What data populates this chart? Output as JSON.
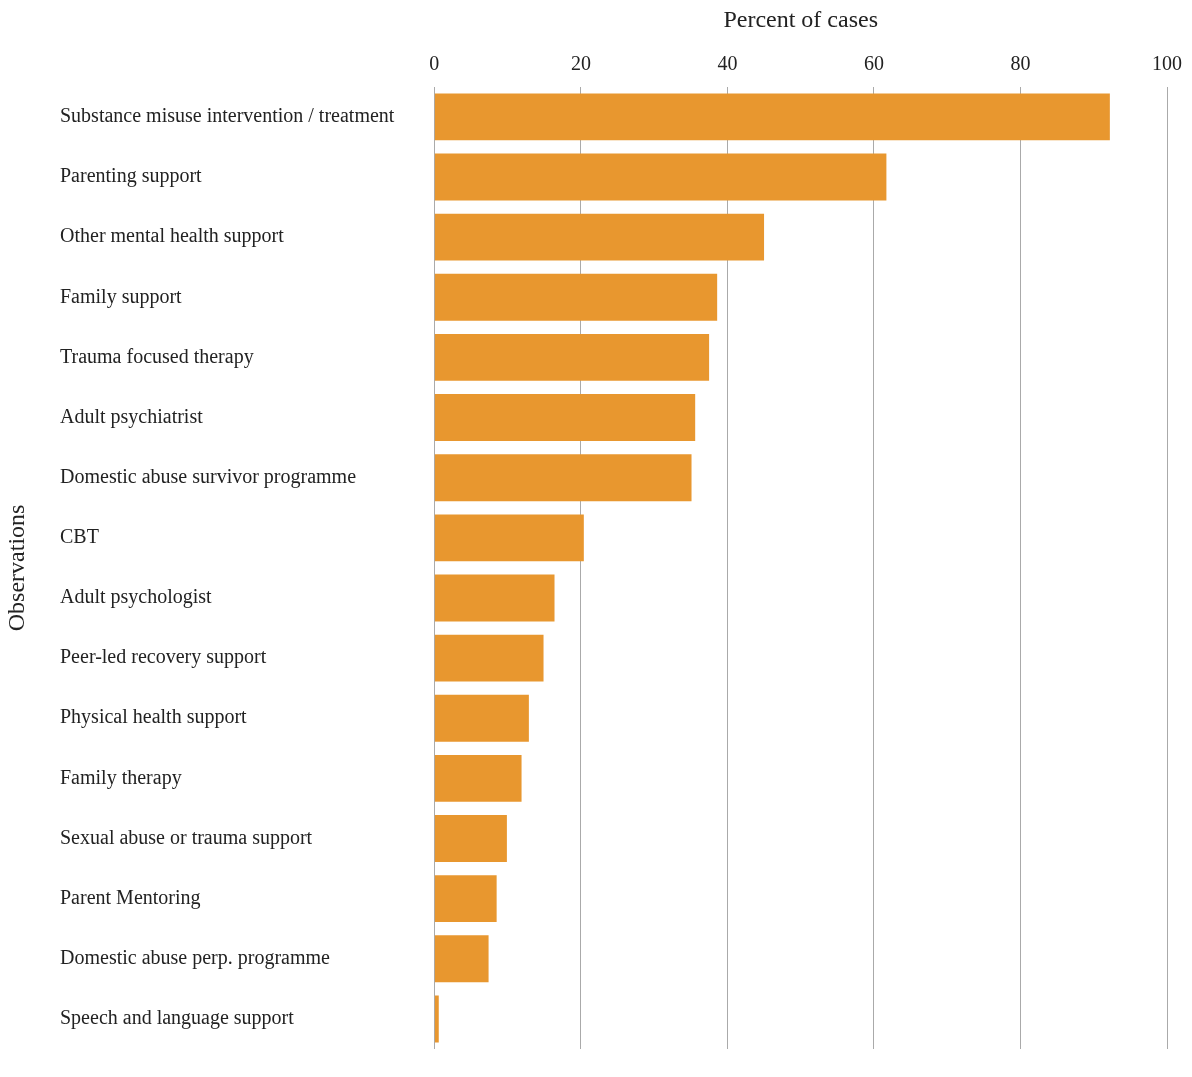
{
  "chart_data": {
    "type": "bar",
    "orientation": "horizontal",
    "xlabel": "Percent of cases",
    "ylabel": "Observations",
    "categories": [
      "Substance misuse intervention / treatment",
      "Parenting support",
      "Other mental health support",
      "Family support",
      "Trauma focused therapy",
      "Adult psychiatrist",
      "Domestic abuse survivor programme",
      "CBT",
      "Adult psychologist",
      "Peer-led recovery support",
      "Physical health support",
      "Family therapy",
      "Sexual abuse or trauma support",
      "Parent Mentoring",
      "Domestic abuse perp. programme",
      "Speech and language support"
    ],
    "values": [
      92.2,
      61.7,
      45.0,
      38.6,
      37.5,
      35.6,
      35.1,
      20.4,
      16.4,
      14.9,
      12.9,
      11.9,
      9.9,
      8.5,
      7.4,
      0.6
    ],
    "color": "#e8972f",
    "xlim": [
      0,
      100
    ],
    "xticks": [
      0,
      20,
      40,
      60,
      80,
      100
    ],
    "grid": "x",
    "legend": false
  }
}
